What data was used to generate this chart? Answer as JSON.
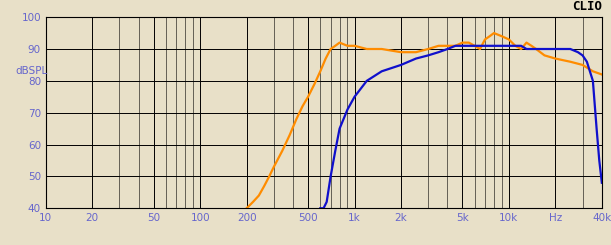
{
  "title": "CLIO",
  "ylabel": "dBSPL",
  "xlabel_hz": "Hz",
  "xmin": 10,
  "xmax": 40000,
  "ymin": 40,
  "ymax": 100,
  "yticks": [
    40,
    50,
    60,
    70,
    80,
    90,
    100
  ],
  "xticks_major": [
    10,
    20,
    50,
    100,
    200,
    500,
    1000,
    2000,
    5000,
    10000,
    20000,
    40000
  ],
  "xtick_labels": [
    "10",
    "20",
    "50",
    "100",
    "200",
    "500",
    "1k",
    "2k",
    "5k",
    "10k",
    "Hz",
    "40k"
  ],
  "bg_color": "#e8e0c8",
  "grid_color": "#000000",
  "orange_color": "#FF8C00",
  "blue_color": "#1010CC",
  "label_color": "#6666CC",
  "orange_data_x": [
    200,
    220,
    240,
    260,
    280,
    300,
    340,
    380,
    420,
    460,
    500,
    550,
    600,
    650,
    700,
    750,
    800,
    900,
    1000,
    1200,
    1500,
    2000,
    2500,
    3000,
    3500,
    4000,
    4500,
    5000,
    5500,
    6000,
    6500,
    7000,
    7500,
    8000,
    9000,
    10000,
    11000,
    12000,
    13000,
    14000,
    15000,
    17000,
    20000,
    25000,
    30000,
    35000,
    40000
  ],
  "orange_data_y": [
    40,
    42,
    44,
    47,
    50,
    53,
    58,
    63,
    68,
    72,
    75,
    79,
    83,
    87,
    90,
    91,
    92,
    91,
    91,
    90,
    90,
    89,
    89,
    90,
    91,
    91,
    91,
    92,
    92,
    91,
    90,
    93,
    94,
    95,
    94,
    93,
    91,
    90,
    92,
    91,
    90,
    88,
    87,
    86,
    85,
    83,
    82
  ],
  "blue_data_x": [
    600,
    630,
    660,
    700,
    750,
    800,
    900,
    1000,
    1200,
    1500,
    2000,
    2500,
    3000,
    3500,
    4000,
    4500,
    5000,
    5500,
    6000,
    6500,
    7000,
    7500,
    8000,
    9000,
    10000,
    11000,
    12000,
    13000,
    14000,
    15000,
    17000,
    20000,
    25000,
    28000,
    30000,
    32000,
    35000,
    37000,
    38500,
    40000
  ],
  "blue_data_y": [
    40,
    40,
    42,
    50,
    58,
    65,
    71,
    75,
    80,
    83,
    85,
    87,
    88,
    89,
    90,
    91,
    91,
    91,
    91,
    91,
    91,
    91,
    91,
    91,
    91,
    91,
    91,
    90,
    90,
    90,
    90,
    90,
    90,
    89,
    88,
    86,
    80,
    65,
    55,
    48
  ]
}
